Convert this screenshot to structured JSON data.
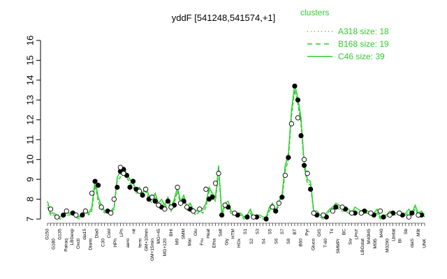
{
  "chart_data": {
    "type": "line",
    "title": "yddF [541248,541574,+1]",
    "xlabel": "",
    "ylabel": "",
    "ylim": [
      7,
      16
    ],
    "yticks": [
      7,
      8,
      9,
      10,
      11,
      12,
      13,
      14,
      15,
      16
    ],
    "grid": false,
    "legend_placement": "top-right",
    "legend": {
      "title": "clusters",
      "entries": [
        {
          "label": "A318 size: 18",
          "style": "dotted"
        },
        {
          "label": "B168 size: 19",
          "style": "dashed"
        },
        {
          "label": "C46 size: 39",
          "style": "solid"
        }
      ]
    },
    "x_tick_labels": [
      "G150",
      "G180",
      "G135",
      "Pairaq",
      "LBGexp",
      "Oxctl",
      "dia15",
      "Diami",
      "Dia0",
      "C30",
      "Cold",
      "HPh",
      "LPh",
      "aero",
      "nit",
      "ferm",
      "GM+10min",
      "GM+15min",
      "MG+45",
      "MG+120",
      "BHI",
      "M9",
      "SMM",
      "Mal",
      "Glu",
      "Fru",
      "Heat",
      "Etha",
      "Salt",
      "Gly",
      "HTM",
      "HOx",
      "S1",
      "S2",
      "S3",
      "S4",
      "S5",
      "S6",
      "S7",
      "S8",
      "BT",
      "B60",
      "Pyr",
      "Gluco",
      "GIS",
      "T-60",
      "T4",
      "SMMPr",
      "BC",
      "Sw",
      "LPhT",
      "LBGstat",
      "M40t45",
      "M0t5",
      "M40",
      "M0290",
      "Lbstat",
      "BI",
      "Sb",
      "diaS",
      "M9t",
      "UNK"
    ],
    "series": [
      {
        "name": "C46 size: 39",
        "style": "solid",
        "x": [
          1,
          2,
          3,
          4,
          5,
          6,
          7,
          8,
          9,
          10,
          11,
          12,
          13,
          14,
          15,
          16,
          17,
          18,
          19,
          20,
          21,
          22,
          23,
          24,
          25,
          26,
          27,
          28,
          29,
          30,
          31,
          32,
          33,
          34,
          35,
          36,
          37,
          38,
          39,
          40,
          41,
          42,
          43,
          44,
          45,
          46,
          47,
          48,
          49,
          50,
          51,
          52,
          53,
          54,
          55,
          56,
          57,
          58,
          59,
          60,
          61,
          62,
          63,
          64,
          65,
          66,
          67,
          68,
          69,
          70,
          71,
          72,
          73,
          74,
          75,
          76,
          77,
          78,
          79,
          80,
          81,
          82,
          83,
          84,
          85,
          86,
          87,
          88,
          89,
          90,
          91,
          92,
          93,
          94,
          95,
          96,
          97,
          98,
          99,
          100,
          101,
          102,
          103,
          104,
          105,
          106,
          107,
          108,
          109,
          110,
          111,
          112,
          113,
          114,
          115,
          116,
          117,
          118,
          119,
          120
        ],
        "values": [
          7.9,
          7.3,
          7.3,
          7.2,
          7.1,
          7.2,
          7.3,
          7.3,
          7.4,
          7.2,
          7.1,
          7.3,
          7.5,
          7.3,
          7.6,
          9.0,
          8.1,
          7.7,
          7.4,
          7.5,
          7.4,
          7.6,
          9.1,
          9.4,
          9.6,
          9.3,
          9.0,
          8.8,
          8.5,
          8.6,
          8.3,
          8.6,
          8.2,
          8.0,
          8.3,
          7.8,
          8.0,
          7.7,
          8.1,
          7.6,
          8.0,
          8.6,
          7.9,
          8.2,
          7.6,
          7.8,
          7.5,
          7.4,
          7.6,
          7.5,
          7.8,
          8.6,
          8.3,
          8.1,
          9.7,
          7.3,
          7.8,
          7.9,
          7.4,
          7.3,
          7.3,
          7.3,
          7.1,
          7.2,
          7.5,
          7.1,
          7.2,
          7.2,
          7.1,
          7.1,
          7.6,
          7.8,
          7.4,
          7.9,
          8.2,
          9.7,
          10.3,
          12.5,
          13.8,
          13.1,
          12.1,
          9.8,
          9.0,
          8.9,
          7.4,
          7.4,
          7.2,
          7.1,
          7.3,
          7.5,
          7.6,
          7.8,
          7.7,
          7.6,
          7.6,
          7.5,
          7.3,
          7.6,
          7.5,
          7.4,
          7.5,
          7.4,
          7.3,
          7.3,
          7.5,
          7.1,
          7.2,
          7.2,
          7.4,
          7.3,
          7.3,
          7.4,
          7.2,
          7.3,
          7.5,
          7.3,
          7.7,
          7.3,
          7.4,
          7.2
        ]
      },
      {
        "name": "B168 size: 19",
        "style": "dashed",
        "x": [
          1,
          2,
          3,
          4,
          5,
          6,
          7,
          8,
          9,
          10,
          11,
          12,
          13,
          14,
          15,
          16,
          17,
          18,
          19,
          20,
          21,
          22,
          23,
          24,
          25,
          26,
          27,
          28,
          29,
          30,
          31,
          32,
          33,
          34,
          35,
          36,
          37,
          38,
          39,
          40,
          41,
          42,
          43,
          44,
          45,
          46,
          47,
          48,
          49,
          50,
          51,
          52,
          53,
          54,
          55,
          56,
          57,
          58,
          59,
          60,
          61,
          62,
          63,
          64,
          65,
          66,
          67,
          68,
          69,
          70,
          71,
          72,
          73,
          74,
          75,
          76,
          77,
          78,
          79,
          80,
          81,
          82,
          83,
          84,
          85,
          86,
          87,
          88,
          89,
          90,
          91,
          92,
          93,
          94,
          95,
          96,
          97,
          98,
          99,
          100,
          101,
          102,
          103,
          104,
          105,
          106,
          107,
          108,
          109,
          110,
          111,
          112,
          113,
          114,
          115,
          116,
          117,
          118,
          119,
          120
        ],
        "values": [
          7.6,
          7.2,
          7.2,
          7.1,
          7.0,
          7.1,
          7.2,
          7.2,
          7.3,
          7.1,
          7.0,
          7.2,
          7.4,
          7.2,
          7.4,
          8.7,
          7.9,
          7.5,
          7.3,
          7.4,
          7.3,
          7.5,
          8.9,
          9.1,
          9.4,
          9.1,
          8.8,
          8.6,
          8.3,
          8.4,
          8.1,
          8.4,
          8.0,
          7.8,
          8.1,
          7.6,
          7.8,
          7.5,
          7.9,
          7.4,
          7.8,
          8.4,
          7.7,
          8.0,
          7.4,
          7.6,
          7.3,
          7.2,
          7.4,
          7.3,
          7.6,
          8.4,
          8.1,
          7.9,
          9.4,
          7.2,
          7.6,
          7.7,
          7.2,
          7.2,
          7.2,
          7.2,
          7.0,
          7.1,
          7.3,
          7.0,
          7.1,
          7.1,
          7.0,
          7.0,
          7.4,
          7.6,
          7.3,
          7.7,
          8.0,
          9.4,
          10.0,
          12.2,
          13.5,
          12.8,
          11.8,
          9.6,
          8.8,
          8.7,
          7.3,
          7.3,
          7.1,
          7.0,
          7.2,
          7.4,
          7.4,
          7.6,
          7.5,
          7.4,
          7.4,
          7.3,
          7.2,
          7.4,
          7.3,
          7.3,
          7.3,
          7.3,
          7.2,
          7.2,
          7.3,
          7.0,
          7.1,
          7.1,
          7.3,
          7.2,
          7.2,
          7.3,
          7.1,
          7.2,
          7.3,
          7.2,
          7.5,
          7.2,
          7.3,
          7.1
        ]
      },
      {
        "name": "A318 size: 18",
        "style": "dotted",
        "x": [
          1,
          2,
          3,
          4,
          5,
          6,
          7,
          8,
          9,
          10,
          11,
          12,
          13,
          14,
          15,
          16,
          17,
          18,
          19,
          20,
          21,
          22,
          23,
          24,
          25,
          26,
          27,
          28,
          29,
          30,
          31,
          32,
          33,
          34,
          35,
          36,
          37,
          38,
          39,
          40,
          41,
          42,
          43,
          44,
          45,
          46,
          47,
          48,
          49,
          50,
          51,
          52,
          53,
          54,
          55,
          56,
          57,
          58,
          59,
          60,
          61,
          62,
          63,
          64,
          65,
          66,
          67,
          68,
          69,
          70,
          71,
          72,
          73,
          74,
          75,
          76,
          77,
          78,
          79,
          80,
          81,
          82,
          83,
          84,
          85,
          86,
          87,
          88,
          89,
          90,
          91,
          92,
          93,
          94,
          95,
          96,
          97,
          98,
          99,
          100,
          101,
          102,
          103,
          104,
          105,
          106,
          107,
          108,
          109,
          110,
          111,
          112,
          113,
          114,
          115,
          116,
          117,
          118,
          119,
          120
        ],
        "values": [
          7.7,
          7.2,
          7.2,
          7.1,
          7.0,
          7.1,
          7.2,
          7.2,
          7.3,
          7.1,
          7.0,
          7.2,
          7.4,
          7.2,
          7.5,
          8.8,
          8.0,
          7.6,
          7.3,
          7.4,
          7.3,
          7.5,
          9.0,
          9.2,
          9.5,
          9.2,
          8.9,
          8.7,
          8.4,
          8.5,
          8.2,
          8.5,
          8.1,
          7.9,
          8.2,
          7.7,
          7.9,
          7.6,
          8.0,
          7.5,
          7.9,
          8.5,
          7.8,
          8.1,
          7.5,
          7.7,
          7.4,
          7.3,
          7.5,
          7.4,
          7.7,
          8.5,
          8.2,
          8.0,
          9.5,
          7.2,
          7.7,
          7.8,
          7.3,
          7.2,
          7.2,
          7.2,
          7.0,
          7.1,
          7.4,
          7.0,
          7.1,
          7.1,
          7.0,
          7.0,
          7.5,
          7.7,
          7.3,
          7.8,
          8.1,
          9.5,
          10.1,
          12.3,
          13.6,
          12.9,
          11.9,
          9.7,
          8.9,
          8.8,
          7.3,
          7.3,
          7.1,
          7.0,
          7.2,
          7.4,
          7.5,
          7.7,
          7.6,
          7.5,
          7.5,
          7.4,
          7.2,
          7.5,
          7.4,
          7.3,
          7.4,
          7.3,
          7.2,
          7.2,
          7.4,
          7.0,
          7.1,
          7.1,
          7.3,
          7.2,
          7.2,
          7.3,
          7.1,
          7.2,
          7.4,
          7.2,
          7.6,
          7.2,
          7.3,
          7.1
        ]
      }
    ],
    "points_filled": [
      {
        "x": 6,
        "y": 7.2
      },
      {
        "x": 9,
        "y": 7.3
      },
      {
        "x": 12,
        "y": 7.2
      },
      {
        "x": 16,
        "y": 8.9
      },
      {
        "x": 17,
        "y": 8.7
      },
      {
        "x": 20,
        "y": 7.4
      },
      {
        "x": 23,
        "y": 8.6
      },
      {
        "x": 24,
        "y": 9.4
      },
      {
        "x": 25,
        "y": 9.5
      },
      {
        "x": 26,
        "y": 9.2
      },
      {
        "x": 27,
        "y": 8.6
      },
      {
        "x": 28,
        "y": 8.9
      },
      {
        "x": 29,
        "y": 8.5
      },
      {
        "x": 31,
        "y": 8.2
      },
      {
        "x": 33,
        "y": 8.0
      },
      {
        "x": 35,
        "y": 7.9
      },
      {
        "x": 37,
        "y": 7.6
      },
      {
        "x": 39,
        "y": 7.9
      },
      {
        "x": 41,
        "y": 7.7
      },
      {
        "x": 44,
        "y": 7.9
      },
      {
        "x": 46,
        "y": 7.5
      },
      {
        "x": 52,
        "y": 8.0
      },
      {
        "x": 53,
        "y": 8.1
      },
      {
        "x": 56,
        "y": 7.2
      },
      {
        "x": 58,
        "y": 7.6
      },
      {
        "x": 61,
        "y": 7.2
      },
      {
        "x": 64,
        "y": 7.1
      },
      {
        "x": 67,
        "y": 7.1
      },
      {
        "x": 70,
        "y": 7.0
      },
      {
        "x": 73,
        "y": 7.4
      },
      {
        "x": 75,
        "y": 8.1
      },
      {
        "x": 77,
        "y": 10.1
      },
      {
        "x": 79,
        "y": 13.7
      },
      {
        "x": 80,
        "y": 13.0
      },
      {
        "x": 81,
        "y": 11.2
      },
      {
        "x": 82,
        "y": 9.7
      },
      {
        "x": 84,
        "y": 8.5
      },
      {
        "x": 86,
        "y": 7.2
      },
      {
        "x": 89,
        "y": 7.1
      },
      {
        "x": 92,
        "y": 7.6
      },
      {
        "x": 95,
        "y": 7.5
      },
      {
        "x": 98,
        "y": 7.3
      },
      {
        "x": 101,
        "y": 7.4
      },
      {
        "x": 104,
        "y": 7.2
      },
      {
        "x": 107,
        "y": 7.1
      },
      {
        "x": 110,
        "y": 7.3
      },
      {
        "x": 113,
        "y": 7.2
      },
      {
        "x": 116,
        "y": 7.3
      },
      {
        "x": 119,
        "y": 7.2
      }
    ],
    "points_open": [
      {
        "x": 2,
        "y": 7.5
      },
      {
        "x": 4,
        "y": 7.1
      },
      {
        "x": 7,
        "y": 7.4
      },
      {
        "x": 10,
        "y": 7.2
      },
      {
        "x": 13,
        "y": 7.4
      },
      {
        "x": 15,
        "y": 8.3
      },
      {
        "x": 18,
        "y": 7.6
      },
      {
        "x": 21,
        "y": 7.3
      },
      {
        "x": 22,
        "y": 8.0
      },
      {
        "x": 24,
        "y": 9.6
      },
      {
        "x": 25,
        "y": 9.3
      },
      {
        "x": 30,
        "y": 8.4
      },
      {
        "x": 32,
        "y": 8.5
      },
      {
        "x": 34,
        "y": 8.1
      },
      {
        "x": 36,
        "y": 7.7
      },
      {
        "x": 38,
        "y": 7.5
      },
      {
        "x": 40,
        "y": 7.6
      },
      {
        "x": 42,
        "y": 8.6
      },
      {
        "x": 43,
        "y": 7.8
      },
      {
        "x": 45,
        "y": 7.6
      },
      {
        "x": 47,
        "y": 7.4
      },
      {
        "x": 49,
        "y": 7.5
      },
      {
        "x": 51,
        "y": 8.5
      },
      {
        "x": 54,
        "y": 8.8
      },
      {
        "x": 55,
        "y": 9.3
      },
      {
        "x": 57,
        "y": 7.7
      },
      {
        "x": 60,
        "y": 7.3
      },
      {
        "x": 66,
        "y": 7.1
      },
      {
        "x": 72,
        "y": 7.6
      },
      {
        "x": 74,
        "y": 7.8
      },
      {
        "x": 76,
        "y": 9.2
      },
      {
        "x": 78,
        "y": 11.8
      },
      {
        "x": 80,
        "y": 12.1
      },
      {
        "x": 82,
        "y": 10.0
      },
      {
        "x": 83,
        "y": 9.3
      },
      {
        "x": 85,
        "y": 7.3
      },
      {
        "x": 88,
        "y": 7.2
      },
      {
        "x": 91,
        "y": 7.4
      },
      {
        "x": 94,
        "y": 7.6
      },
      {
        "x": 97,
        "y": 7.3
      },
      {
        "x": 100,
        "y": 7.3
      },
      {
        "x": 103,
        "y": 7.3
      },
      {
        "x": 106,
        "y": 7.4
      },
      {
        "x": 109,
        "y": 7.2
      },
      {
        "x": 112,
        "y": 7.3
      },
      {
        "x": 115,
        "y": 7.1
      },
      {
        "x": 118,
        "y": 7.2
      }
    ]
  }
}
